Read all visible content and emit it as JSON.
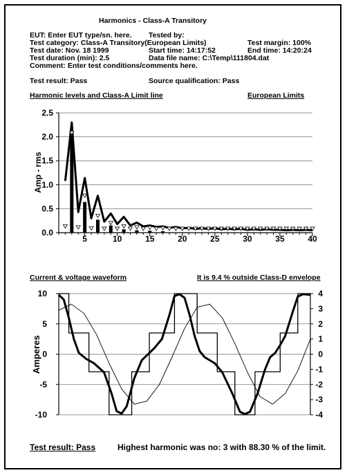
{
  "header": {
    "title": "Harmonics - Class-A Transitory",
    "eut": "EUT: Enter EUT type/sn. here.",
    "tested_by": "Tested by:",
    "test_category": "Test category: Class-A Transitory(European Limits)",
    "test_margin": "Test margin: 100%",
    "test_date": "Test date: Nov. 18 1999",
    "start_time": "Start time: 14:17:52",
    "end_time": "End time: 14:20:24",
    "test_duration": "Test duration (min): 2.5",
    "data_file": "Data file name: C:\\Temp\\111804.dat",
    "comment": "Comment: Enter test conditions/comments here.",
    "test_result": "Test result: Pass",
    "source_qualification": "Source qualification: Pass"
  },
  "harmonics_section": {
    "title": "Harmonic levels and Class-A Limit line",
    "limits": "European Limits"
  },
  "waveform_section": {
    "title": "Current & voltage waveform",
    "envelope_note": "It is 9.4 % outside Class-D envelope"
  },
  "footer": {
    "test_result": "Test result: Pass",
    "highest_harmonic": "Highest harmonic was no: 3 with 88.30 % of the limit."
  },
  "chart_data": [
    {
      "type": "bar",
      "ylabel": "Amp - rms",
      "xlim": [
        1,
        40
      ],
      "ylim": [
        0,
        2.5
      ],
      "xticks": [
        5,
        10,
        15,
        20,
        25,
        30,
        35,
        40
      ],
      "yticks": [
        "0.0",
        "0.5",
        "1.0",
        "1.5",
        "2.0",
        "2.5"
      ],
      "grid": true,
      "series": [
        {
          "kind": "limit-line",
          "x": [
            2,
            3,
            4,
            5,
            6,
            7,
            8,
            9,
            10,
            11,
            12,
            13,
            14,
            15,
            16,
            17,
            18,
            19,
            20,
            21,
            22,
            23,
            24,
            25,
            26,
            27,
            28,
            29,
            30,
            31,
            32,
            33,
            34,
            35,
            36,
            37,
            38,
            39,
            40
          ],
          "values": [
            1.08,
            2.3,
            0.43,
            1.14,
            0.3,
            0.77,
            0.23,
            0.4,
            0.18,
            0.33,
            0.15,
            0.21,
            0.13,
            0.15,
            0.12,
            0.13,
            0.1,
            0.12,
            0.09,
            0.1,
            0.08,
            0.09,
            0.08,
            0.09,
            0.07,
            0.08,
            0.07,
            0.08,
            0.06,
            0.07,
            0.06,
            0.07,
            0.06,
            0.06,
            0.05,
            0.06,
            0.05,
            0.06,
            0.05
          ]
        },
        {
          "kind": "measured-bars",
          "x": [
            3,
            5,
            7,
            9,
            11,
            13,
            15,
            17
          ],
          "values": [
            2.03,
            0.64,
            0.27,
            0.15,
            0.07,
            0.05,
            0.04,
            0.03
          ]
        },
        {
          "kind": "max-markers",
          "x": [
            2,
            3,
            4,
            5,
            6,
            7,
            8,
            9,
            10,
            11,
            12,
            13,
            14,
            15,
            16,
            17,
            18,
            19,
            20,
            21,
            22,
            23,
            24,
            25,
            26,
            27,
            28,
            29,
            30,
            31,
            32,
            33,
            34,
            35,
            36,
            37,
            38,
            39,
            40
          ],
          "values": [
            0.08,
            2.03,
            0.06,
            0.72,
            0.04,
            0.3,
            0.03,
            0.15,
            0.03,
            0.08,
            0.03,
            0.06,
            0.03,
            0.05,
            0.03,
            0.04,
            0.03,
            0.03,
            0.03,
            0.03,
            0.03,
            0.03,
            0.03,
            0.03,
            0.03,
            0.03,
            0.03,
            0.03,
            0.03,
            0.03,
            0.03,
            0.03,
            0.03,
            0.03,
            0.03,
            0.03,
            0.03,
            0.03,
            0.03
          ]
        }
      ]
    },
    {
      "type": "line",
      "ylabel": "Amperes",
      "ylim": [
        -10,
        10
      ],
      "y2lim": [
        -4,
        4
      ],
      "yticks": [
        "10",
        "5",
        "0",
        "-5",
        "-10"
      ],
      "y2ticks": [
        "4",
        "3",
        "2",
        "1",
        "0",
        "-1",
        "-2",
        "-3",
        "-4"
      ],
      "grid": true,
      "series": [
        {
          "kind": "class-d-envelope",
          "x": [
            0,
            0.04,
            0.04,
            0.12,
            0.12,
            0.2,
            0.2,
            0.29,
            0.29,
            0.36,
            0.36,
            0.46,
            0.46,
            0.55,
            0.55,
            0.63,
            0.63,
            0.7,
            0.7,
            0.78,
            0.78,
            0.88,
            0.88,
            0.95,
            0.95,
            1.0
          ],
          "values": [
            10,
            10,
            3.5,
            3.5,
            -2.9,
            -2.9,
            -10,
            -10,
            -2.9,
            -2.9,
            3.5,
            3.5,
            10,
            10,
            3.5,
            3.5,
            -2.9,
            -2.9,
            -10,
            -10,
            -2.9,
            -2.9,
            3.5,
            3.5,
            10,
            10
          ]
        },
        {
          "kind": "current",
          "x": [
            0,
            0.02,
            0.04,
            0.06,
            0.08,
            0.11,
            0.14,
            0.18,
            0.21,
            0.23,
            0.25,
            0.27,
            0.3,
            0.33,
            0.36,
            0.38,
            0.41,
            0.44,
            0.46,
            0.48,
            0.5,
            0.52,
            0.54,
            0.56,
            0.58,
            0.62,
            0.65,
            0.69,
            0.72,
            0.74,
            0.76,
            0.79,
            0.82,
            0.84,
            0.86,
            0.88,
            0.9,
            0.93,
            0.95,
            0.97,
            1.0
          ],
          "values": [
            9.8,
            9.0,
            6.0,
            2.5,
            0.2,
            -0.8,
            -1.5,
            -3.0,
            -6.5,
            -9.4,
            -9.8,
            -8.6,
            -4.0,
            -1.0,
            0.2,
            1.0,
            2.5,
            6.5,
            9.6,
            9.9,
            9.3,
            6.5,
            3.0,
            0.5,
            -0.5,
            -1.5,
            -3.0,
            -6.5,
            -9.5,
            -9.9,
            -9.5,
            -6.5,
            -2.5,
            -0.5,
            0.2,
            1.5,
            3.0,
            7.0,
            9.5,
            9.9,
            9.8
          ]
        },
        {
          "kind": "voltage",
          "x": [
            0,
            0.05,
            0.1,
            0.15,
            0.2,
            0.25,
            0.3,
            0.35,
            0.4,
            0.45,
            0.5,
            0.55,
            0.6,
            0.65,
            0.7,
            0.75,
            0.8,
            0.85,
            0.9,
            0.95,
            1.0
          ],
          "values": [
            2.9,
            3.3,
            2.7,
            1.3,
            -0.6,
            -2.3,
            -3.3,
            -3.1,
            -2.0,
            -0.2,
            1.7,
            3.1,
            3.3,
            2.4,
            0.7,
            -1.2,
            -2.8,
            -3.3,
            -2.6,
            -1.1,
            1.0
          ]
        }
      ]
    }
  ]
}
